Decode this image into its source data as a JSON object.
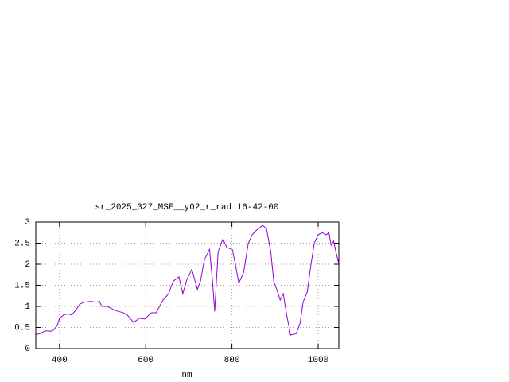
{
  "chart_data": {
    "type": "line",
    "title": "sr_2025_327_MSE__y02_r_rad 16-42-00",
    "x_label": "nm",
    "x": [
      345,
      354,
      367,
      382,
      387,
      395,
      400,
      410,
      419,
      428,
      437,
      447,
      456,
      474,
      483,
      493,
      498,
      511,
      530,
      548,
      557,
      572,
      585,
      598,
      613,
      624,
      640,
      653,
      664,
      677,
      686,
      696,
      707,
      720,
      727,
      736,
      748,
      755,
      760,
      768,
      779,
      788,
      801,
      808,
      816,
      827,
      838,
      847,
      856,
      871,
      880,
      890,
      897,
      904,
      912,
      919,
      927,
      936,
      949,
      958,
      965,
      975,
      982,
      991,
      1000,
      1010,
      1019,
      1025,
      1030,
      1036,
      1041,
      1047,
      1048
    ],
    "values": [
      0.33,
      0.35,
      0.42,
      0.41,
      0.45,
      0.55,
      0.72,
      0.8,
      0.82,
      0.8,
      0.9,
      1.05,
      1.1,
      1.12,
      1.1,
      1.12,
      1.0,
      1.0,
      0.9,
      0.85,
      0.8,
      0.62,
      0.72,
      0.7,
      0.85,
      0.85,
      1.15,
      1.3,
      1.6,
      1.7,
      1.3,
      1.65,
      1.88,
      1.4,
      1.6,
      2.1,
      2.35,
      1.6,
      0.88,
      2.3,
      2.6,
      2.4,
      2.35,
      2.0,
      1.55,
      1.8,
      2.5,
      2.7,
      2.8,
      2.92,
      2.85,
      2.3,
      1.6,
      1.4,
      1.15,
      1.3,
      0.8,
      0.32,
      0.35,
      0.6,
      1.1,
      1.35,
      1.9,
      2.5,
      2.7,
      2.75,
      2.7,
      2.75,
      2.45,
      2.55,
      2.3,
      2.05,
      2.15
    ],
    "color": "#9400d3",
    "xlim": [
      345,
      1048
    ],
    "xticks": [
      400,
      600,
      800,
      1000
    ],
    "ylim": [
      0,
      3
    ],
    "yticks": [
      0,
      0.5,
      1,
      1.5,
      2,
      2.5,
      3
    ],
    "grid": true
  }
}
